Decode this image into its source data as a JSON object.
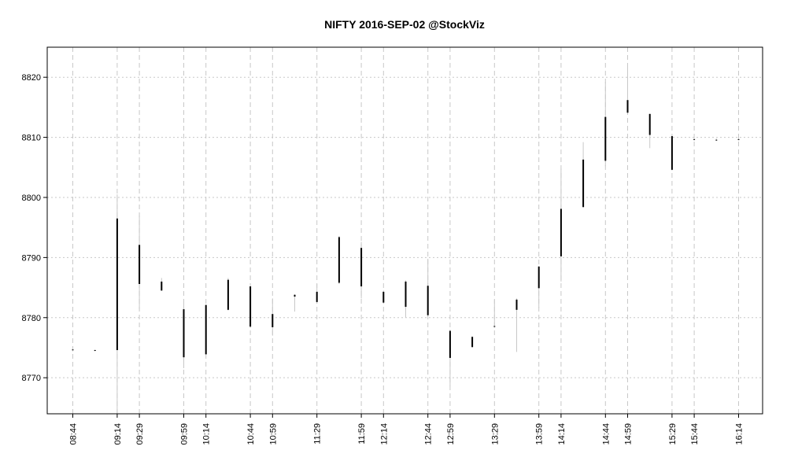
{
  "chart_data": {
    "type": "candlestick",
    "title": "NIFTY 2016-SEP-02 @StockViz",
    "xlabel": "",
    "ylabel": "",
    "ylim": [
      8764,
      8825
    ],
    "y_ticks": [
      8770,
      8780,
      8790,
      8800,
      8810,
      8820
    ],
    "y_tick_labels": [
      "8770",
      "8780",
      "8790",
      "8800",
      "8810",
      "8820"
    ],
    "x_ticks": [
      0,
      2,
      3,
      5,
      6,
      8,
      9,
      11,
      13,
      14,
      16,
      17,
      19,
      21,
      22,
      24,
      25,
      27,
      28,
      30
    ],
    "x_tick_labels": [
      "08:44",
      "09:14",
      "09:29",
      "09:59",
      "10:14",
      "10:44",
      "10:59",
      "11:29",
      "11:59",
      "12:14",
      "12:44",
      "12:59",
      "13:29",
      "13:59",
      "14:14",
      "14:44",
      "14:59",
      "15:29",
      "15:44",
      "16:14"
    ],
    "grid": true,
    "candles": [
      {
        "x": 0,
        "open": 8774.6,
        "high": 8774.8,
        "low": 8774.4,
        "close": 8774.7
      },
      {
        "x": 1,
        "open": 8774.5,
        "high": 8774.7,
        "low": 8774.4,
        "close": 8774.6
      },
      {
        "x": 2,
        "open": 8774.6,
        "high": 8800.5,
        "low": 8764.0,
        "close": 8796.5
      },
      {
        "x": 3,
        "open": 8792.1,
        "high": 8797.0,
        "low": 8781.4,
        "close": 8785.6
      },
      {
        "x": 4,
        "open": 8786.0,
        "high": 8786.6,
        "low": 8784.5,
        "close": 8784.5
      },
      {
        "x": 5,
        "open": 8773.4,
        "high": 8782.8,
        "low": 8771.6,
        "close": 8781.4
      },
      {
        "x": 6,
        "open": 8773.9,
        "high": 8782.2,
        "low": 8773.8,
        "close": 8782.1
      },
      {
        "x": 7,
        "open": 8781.3,
        "high": 8786.6,
        "low": 8781.2,
        "close": 8786.3
      },
      {
        "x": 8,
        "open": 8785.2,
        "high": 8785.3,
        "low": 8778.3,
        "close": 8778.5
      },
      {
        "x": 9,
        "open": 8778.4,
        "high": 8783.2,
        "low": 8777.0,
        "close": 8780.6
      },
      {
        "x": 10,
        "open": 8783.5,
        "high": 8783.9,
        "low": 8781.0,
        "close": 8783.8
      },
      {
        "x": 11,
        "open": 8782.6,
        "high": 8785.6,
        "low": 8782.4,
        "close": 8784.3
      },
      {
        "x": 12,
        "open": 8785.8,
        "high": 8793.6,
        "low": 8785.6,
        "close": 8793.4
      },
      {
        "x": 13,
        "open": 8791.6,
        "high": 8792.6,
        "low": 8783.2,
        "close": 8785.2
      },
      {
        "x": 14,
        "open": 8784.3,
        "high": 8784.5,
        "low": 8782.4,
        "close": 8782.5
      },
      {
        "x": 15,
        "open": 8781.8,
        "high": 8786.2,
        "low": 8780.0,
        "close": 8786.0
      },
      {
        "x": 16,
        "open": 8785.3,
        "high": 8789.8,
        "low": 8780.1,
        "close": 8780.4
      },
      {
        "x": 17,
        "open": 8777.8,
        "high": 8778.0,
        "low": 8768.6,
        "close": 8773.3
      },
      {
        "x": 18,
        "open": 8775.1,
        "high": 8776.9,
        "low": 8775.0,
        "close": 8776.8
      },
      {
        "x": 19,
        "open": 8778.5,
        "high": 8783.0,
        "low": 8778.3,
        "close": 8778.6
      },
      {
        "x": 20,
        "open": 8781.3,
        "high": 8783.2,
        "low": 8774.3,
        "close": 8783.0
      },
      {
        "x": 21,
        "open": 8784.9,
        "high": 8788.6,
        "low": 8781.6,
        "close": 8788.5
      },
      {
        "x": 22,
        "open": 8790.2,
        "high": 8804.8,
        "low": 8786.0,
        "close": 8798.1
      },
      {
        "x": 23,
        "open": 8798.4,
        "high": 8809.2,
        "low": 8798.3,
        "close": 8806.3
      },
      {
        "x": 24,
        "open": 8806.1,
        "high": 8819.2,
        "low": 8805.2,
        "close": 8813.4
      },
      {
        "x": 25,
        "open": 8814.1,
        "high": 8821.6,
        "low": 8813.8,
        "close": 8816.2
      },
      {
        "x": 26,
        "open": 8813.9,
        "high": 8813.9,
        "low": 8808.2,
        "close": 8810.4
      },
      {
        "x": 27,
        "open": 8810.2,
        "high": 8810.4,
        "low": 8804.5,
        "close": 8804.6
      },
      {
        "x": 28,
        "open": 8809.6,
        "high": 8809.8,
        "low": 8809.5,
        "close": 8809.7
      },
      {
        "x": 29,
        "open": 8809.5,
        "high": 8809.8,
        "low": 8809.4,
        "close": 8809.6
      },
      {
        "x": 30,
        "open": 8809.6,
        "high": 8809.8,
        "low": 8809.5,
        "close": 8809.7
      }
    ],
    "colors": {
      "body": "#000000",
      "wick": "#c8c8c8",
      "grid": "#c8c8c8",
      "frame": "#000000"
    }
  }
}
